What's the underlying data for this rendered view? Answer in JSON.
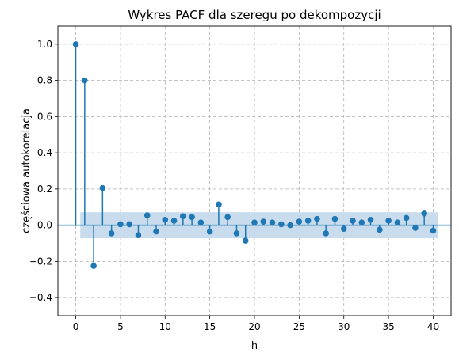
{
  "chart_data": {
    "type": "stem",
    "title": "Wykres PACF dla szeregu po dekompozycji",
    "xlabel": "h",
    "ylabel": "częściowa autokorelacja",
    "xlim": [
      -2,
      42
    ],
    "ylim": [
      -0.5,
      1.1
    ],
    "xticks": [
      0,
      5,
      10,
      15,
      20,
      25,
      30,
      35,
      40
    ],
    "yticks": [
      -0.4,
      -0.2,
      0.0,
      0.2,
      0.4,
      0.6,
      0.8,
      1.0
    ],
    "xtick_labels": [
      "0",
      "5",
      "10",
      "15",
      "20",
      "25",
      "30",
      "35",
      "40"
    ],
    "ytick_labels": [
      "−0.4",
      "−0.2",
      "0.0",
      "0.2",
      "0.4",
      "0.6",
      "0.8",
      "1.0"
    ],
    "grid": true,
    "confidence_band": [
      -0.072,
      0.072
    ],
    "x": [
      0,
      1,
      2,
      3,
      4,
      5,
      6,
      7,
      8,
      9,
      10,
      11,
      12,
      13,
      14,
      15,
      16,
      17,
      18,
      19,
      20,
      21,
      22,
      23,
      24,
      25,
      26,
      27,
      28,
      29,
      30,
      31,
      32,
      33,
      34,
      35,
      36,
      37,
      38,
      39,
      40
    ],
    "values": [
      1.0,
      0.8,
      -0.225,
      0.205,
      -0.045,
      0.005,
      0.005,
      -0.055,
      0.055,
      -0.035,
      0.03,
      0.025,
      0.05,
      0.045,
      0.015,
      -0.035,
      0.115,
      0.045,
      -0.045,
      -0.085,
      0.015,
      0.02,
      0.015,
      0.005,
      0.0,
      0.02,
      0.025,
      0.035,
      -0.045,
      0.035,
      -0.02,
      0.025,
      0.015,
      0.03,
      -0.025,
      0.025,
      0.015,
      0.04,
      -0.015,
      0.065,
      -0.03
    ],
    "colors": {
      "stem": "#1f77b4",
      "band": "#c5daed",
      "zero_line": "#1f77b4"
    }
  }
}
